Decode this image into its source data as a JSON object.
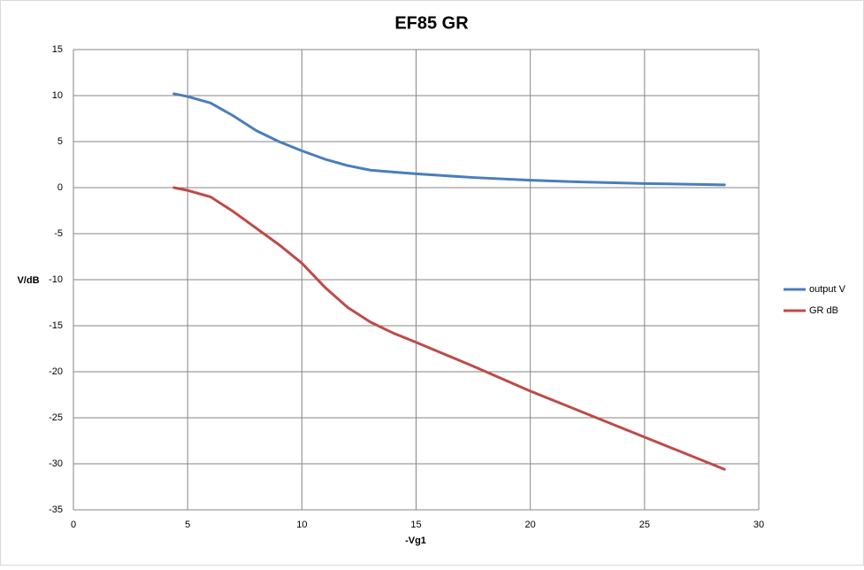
{
  "chart_data": {
    "type": "line",
    "title": "EF85 GR",
    "x_label": "-Vg1",
    "y_label": "V/dB",
    "x": [
      4.4,
      5,
      6,
      7,
      8,
      9,
      10,
      11,
      12,
      13,
      14,
      15,
      17.5,
      20,
      22.5,
      25,
      28.5
    ],
    "series": [
      {
        "name": "output V",
        "color": "#4a7ebb",
        "values": [
          10.2,
          9.9,
          9.2,
          7.8,
          6.2,
          5.0,
          4.0,
          3.1,
          2.4,
          1.9,
          1.7,
          1.5,
          1.1,
          0.8,
          0.6,
          0.45,
          0.3
        ]
      },
      {
        "name": "GR dB",
        "color": "#be4b48",
        "values": [
          0,
          -0.3,
          -1.0,
          -2.6,
          -4.4,
          -6.2,
          -8.2,
          -10.8,
          -13.0,
          -14.6,
          -15.8,
          -16.8,
          -19.4,
          -22.1,
          -24.6,
          -27.1,
          -30.6
        ]
      }
    ],
    "xlim": [
      0,
      30
    ],
    "xticks": [
      0,
      5,
      10,
      15,
      20,
      25,
      30
    ],
    "ylim": [
      -35,
      15
    ],
    "yticks": [
      -35,
      -30,
      -25,
      -20,
      -15,
      -10,
      -5,
      0,
      5,
      10,
      15
    ],
    "grid": true,
    "legend": "right"
  }
}
